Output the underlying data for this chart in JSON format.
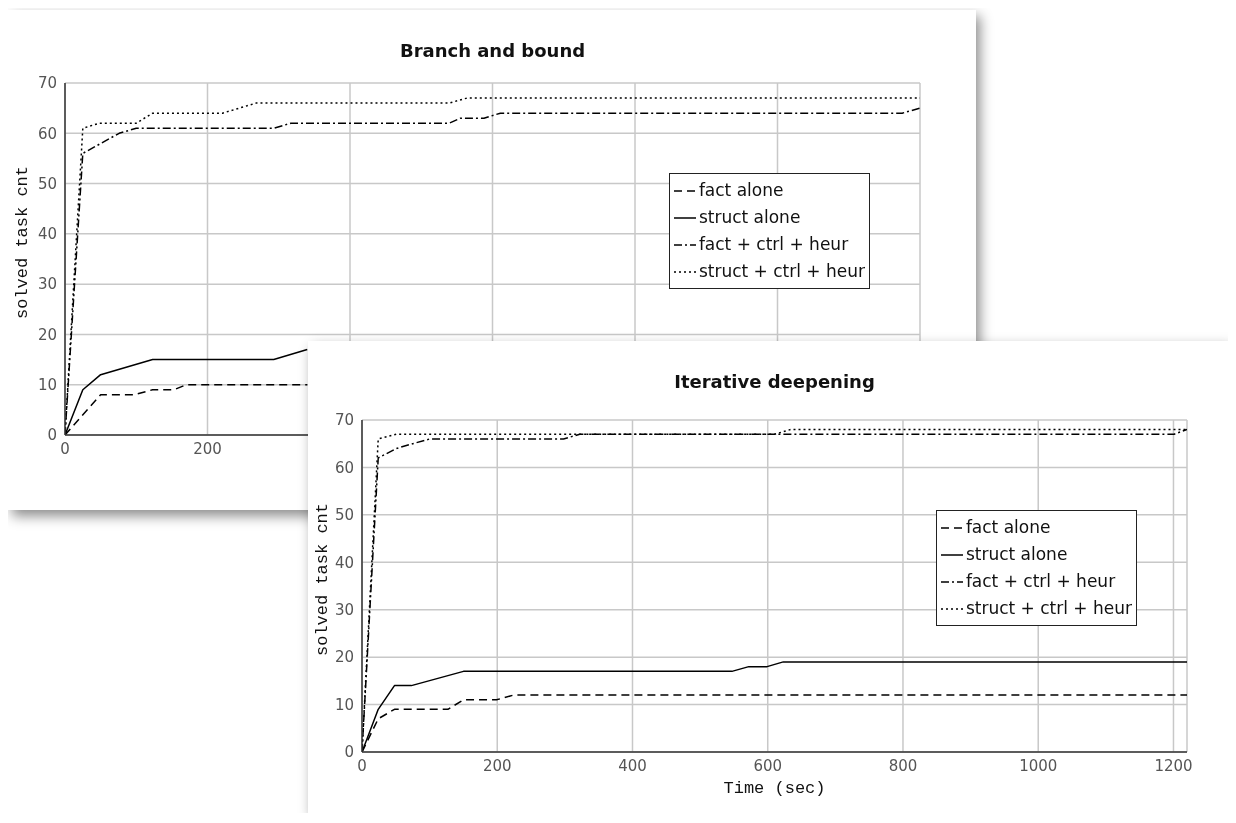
{
  "chart_data": [
    {
      "type": "line",
      "title": "Branch and bound",
      "ylabel": "solved task cnt",
      "xlim": [
        0,
        1200
      ],
      "ylim": [
        0,
        70
      ],
      "xticks": [
        0,
        200,
        {
          "value": 400,
          "label": null
        },
        {
          "value": 600,
          "label": null
        },
        {
          "value": 800,
          "label": null
        },
        {
          "value": 1000,
          "label": null
        },
        {
          "value": 1200,
          "label": null
        }
      ],
      "yticks": [
        0,
        10,
        20,
        30,
        40,
        50,
        60,
        70
      ],
      "grid": true,
      "legend": "right",
      "marker": "none",
      "series": [
        {
          "name": "fact alone",
          "color": "#000000",
          "line_style": "dashed",
          "x": [
            0,
            50,
            97,
            123,
            153,
            170,
            340
          ],
          "values": [
            0,
            8,
            8,
            9,
            9,
            10,
            10
          ]
        },
        {
          "name": "struct alone",
          "color": "#000000",
          "line_style": "solid",
          "x": [
            0,
            25,
            50,
            123,
            293,
            340
          ],
          "values": [
            0,
            9,
            12,
            15,
            15,
            17
          ]
        },
        {
          "name": "fact + ctrl + heur",
          "color": "#000000",
          "line_style": "dashdot",
          "x": [
            0,
            25,
            76,
            100,
            293,
            317,
            539,
            555,
            588,
            611,
            1175,
            1200
          ],
          "values": [
            0,
            56,
            60,
            61,
            61,
            62,
            62,
            63,
            63,
            64,
            64,
            65
          ]
        },
        {
          "name": "struct + ctrl + heur",
          "color": "#000000",
          "line_style": "dotted",
          "x": [
            0,
            25,
            48,
            100,
            123,
            221,
            268,
            539,
            564,
            1200
          ],
          "values": [
            0,
            61,
            62,
            62,
            64,
            64,
            66,
            66,
            67,
            67
          ]
        }
      ]
    },
    {
      "type": "line",
      "title": "Iterative deepening",
      "xlabel": "Time (sec)",
      "ylabel": "solved task cnt",
      "xlim": [
        0,
        1220
      ],
      "ylim": [
        0,
        70
      ],
      "xticks": [
        0,
        200,
        400,
        600,
        800,
        1000,
        1200
      ],
      "yticks": [
        0,
        10,
        20,
        30,
        40,
        50,
        60,
        70
      ],
      "grid": true,
      "legend": "right",
      "marker": "none",
      "series": [
        {
          "name": "fact alone",
          "color": "#000000",
          "line_style": "dashed",
          "x": [
            0,
            24,
            48,
            127,
            150,
            199,
            224,
            1220
          ],
          "values": [
            0,
            7,
            9,
            9,
            11,
            11,
            12,
            12
          ]
        },
        {
          "name": "struct alone",
          "color": "#000000",
          "line_style": "solid",
          "x": [
            0,
            24,
            48,
            73,
            150,
            547,
            572,
            599,
            623,
            1220
          ],
          "values": [
            0,
            9,
            14,
            14,
            17,
            17,
            18,
            18,
            19,
            19
          ]
        },
        {
          "name": "fact + ctrl + heur",
          "color": "#000000",
          "line_style": "dashdot",
          "x": [
            0,
            24,
            51,
            75,
            100,
            298,
            322,
            1201,
            1220
          ],
          "values": [
            0,
            62,
            64,
            65,
            66,
            66,
            67,
            67,
            68
          ]
        },
        {
          "name": "struct + ctrl + heur",
          "color": "#000000",
          "line_style": "dotted",
          "x": [
            0,
            24,
            51,
            610,
            634,
            1220
          ],
          "values": [
            0,
            66,
            67,
            67,
            68,
            68
          ]
        }
      ]
    }
  ]
}
